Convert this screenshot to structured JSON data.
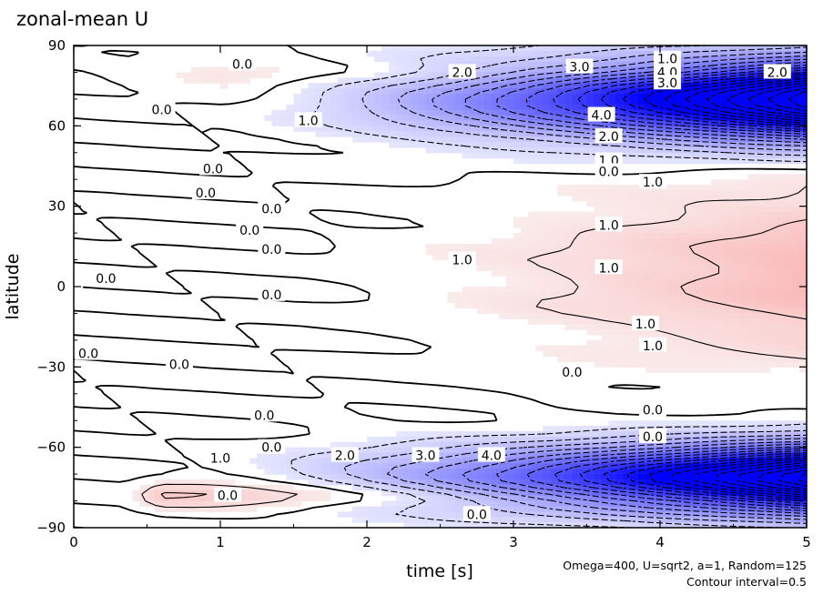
{
  "chart_data": {
    "type": "heatmap",
    "title": "zonal-mean U",
    "xlabel": "time [s]",
    "ylabel": "latitude",
    "xlim": [
      0,
      5
    ],
    "ylim": [
      -90,
      90
    ],
    "x_ticks": [
      0,
      1,
      2,
      3,
      4,
      5
    ],
    "y_ticks": [
      90,
      60,
      30,
      0,
      -30,
      -60,
      -90
    ],
    "y_tick_labels": [
      "90",
      "60",
      "30",
      "0",
      "−30",
      "−60",
      "−90"
    ],
    "info_line": "Omega=400, U=sqrt2, a=1, Random=125",
    "contour_note": "Contour interval=0.5",
    "colors": {
      "positive": "#f4c6c6",
      "negative": "#0000ff",
      "lines": "#000000"
    },
    "features": [
      {
        "sign": "negative",
        "t_start": 1.0,
        "t_peak": 5.0,
        "lat_center": 70,
        "lat_half_width": 14,
        "peak": -10.0
      },
      {
        "sign": "negative",
        "t_start": 0.8,
        "t_peak": 5.0,
        "lat_center": -72,
        "lat_half_width": 12,
        "peak": -10.0
      },
      {
        "sign": "positive",
        "t_start": 1.5,
        "t_peak": 5.0,
        "lat_center": 5,
        "lat_half_width": 30,
        "peak": 1.5
      },
      {
        "sign": "positive",
        "t_start": 0.3,
        "t_peak": 0.6,
        "lat_center": -78,
        "lat_half_width": 5,
        "peak": 1.0
      },
      {
        "sign": "positive",
        "t_start": 0.0,
        "t_peak": 1.0,
        "lat_center": 80,
        "lat_half_width": 5,
        "peak": 0.5
      }
    ],
    "contour_labels": [
      {
        "text": "0.0",
        "t": 1.15,
        "lat": 83
      },
      {
        "text": "2.0",
        "t": 2.65,
        "lat": 80
      },
      {
        "text": "3.0",
        "t": 3.45,
        "lat": 82
      },
      {
        "text": "1.0",
        "t": 4.05,
        "lat": 85
      },
      {
        "text": "4.0",
        "t": 4.05,
        "lat": 80
      },
      {
        "text": "3.0",
        "t": 4.05,
        "lat": 76
      },
      {
        "text": "2.0",
        "t": 4.8,
        "lat": 80
      },
      {
        "text": "0.0",
        "t": 0.6,
        "lat": 66
      },
      {
        "text": "1.0",
        "t": 1.6,
        "lat": 62
      },
      {
        "text": "4.0",
        "t": 3.6,
        "lat": 64
      },
      {
        "text": "2.0",
        "t": 3.65,
        "lat": 56
      },
      {
        "text": "1.0",
        "t": 3.65,
        "lat": 47
      },
      {
        "text": "0.0",
        "t": 3.65,
        "lat": 43
      },
      {
        "text": "0.0",
        "t": 0.95,
        "lat": 44
      },
      {
        "text": "0.0",
        "t": 0.9,
        "lat": 35
      },
      {
        "text": "1.0",
        "t": 3.95,
        "lat": 39
      },
      {
        "text": "0.0",
        "t": 1.35,
        "lat": 29
      },
      {
        "text": "0.0",
        "t": 1.2,
        "lat": 21
      },
      {
        "text": "1.0",
        "t": 3.65,
        "lat": 23
      },
      {
        "text": "0.0",
        "t": 1.35,
        "lat": 14
      },
      {
        "text": "1.0",
        "t": 2.65,
        "lat": 10
      },
      {
        "text": "1.0",
        "t": 3.65,
        "lat": 7
      },
      {
        "text": "0.0",
        "t": 0.22,
        "lat": 3
      },
      {
        "text": "0.0",
        "t": 1.35,
        "lat": -3
      },
      {
        "text": "1.0",
        "t": 3.9,
        "lat": -14
      },
      {
        "text": "1.0",
        "t": 3.95,
        "lat": -22
      },
      {
        "text": "0.0",
        "t": 0.1,
        "lat": -25
      },
      {
        "text": "0.0",
        "t": 0.72,
        "lat": -29
      },
      {
        "text": "0.0",
        "t": 3.4,
        "lat": -32
      },
      {
        "text": "0.0",
        "t": 3.95,
        "lat": -46
      },
      {
        "text": "0.0",
        "t": 1.3,
        "lat": -48
      },
      {
        "text": "0.0",
        "t": 3.95,
        "lat": -56
      },
      {
        "text": "0.0",
        "t": 1.35,
        "lat": -60
      },
      {
        "text": "1.0",
        "t": 1.0,
        "lat": -64
      },
      {
        "text": "2.0",
        "t": 1.85,
        "lat": -63
      },
      {
        "text": "3.0",
        "t": 2.4,
        "lat": -63
      },
      {
        "text": "4.0",
        "t": 2.85,
        "lat": -63
      },
      {
        "text": "0.0",
        "t": 1.05,
        "lat": -78
      },
      {
        "text": "0.0",
        "t": 2.75,
        "lat": -85
      }
    ]
  }
}
